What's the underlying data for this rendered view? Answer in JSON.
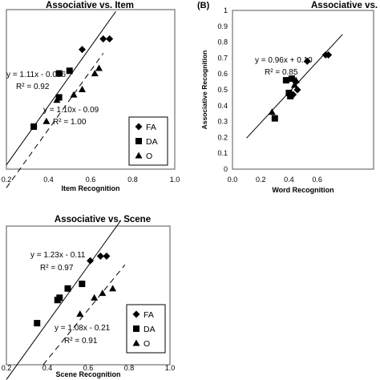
{
  "chart_data": [
    {
      "type": "scatter",
      "panel": "",
      "title": "Associative vs. Item",
      "xlabel": "Item Recognition",
      "ylabel": "",
      "xlim": [
        0.2,
        1.0
      ],
      "ylim": [
        0.2,
        0.8
      ],
      "xticks": [
        "0.2",
        "0.4",
        "0.6",
        "0.8",
        "1.0"
      ],
      "legend": {
        "placement": "bottom-right",
        "entries": [
          "FA",
          "DA",
          "O"
        ]
      },
      "series": [
        {
          "name": "FA",
          "marker": "diamond",
          "points": [
            [
              0.56,
              0.65
            ],
            [
              0.66,
              0.69
            ],
            [
              0.69,
              0.69
            ]
          ]
        },
        {
          "name": "DA",
          "marker": "square",
          "points": [
            [
              0.33,
              0.36
            ],
            [
              0.45,
              0.56
            ],
            [
              0.5,
              0.57
            ],
            [
              0.45,
              0.47
            ]
          ]
        },
        {
          "name": "O",
          "marker": "triangle",
          "points": [
            [
              0.39,
              0.38
            ],
            [
              0.44,
              0.46
            ],
            [
              0.52,
              0.48
            ],
            [
              0.56,
              0.5
            ],
            [
              0.62,
              0.56
            ],
            [
              0.64,
              0.58
            ]
          ]
        }
      ],
      "fits": [
        {
          "label": "y = 1.11x - 0.006",
          "r2": "R² = 0.92",
          "slope": 1.11,
          "intercept": -0.006,
          "x_range": [
            0.2,
            0.72
          ],
          "style": "solid"
        },
        {
          "label": "y = 1.10x - 0.09",
          "r2": "R² = 1.00",
          "slope": 1.1,
          "intercept": -0.09,
          "x_range": [
            0.2,
            0.66
          ],
          "style": "dashed"
        }
      ]
    },
    {
      "type": "scatter",
      "panel": "(B)",
      "title": "Associative vs. Wo",
      "xlabel": "Word Recognition",
      "ylabel": "Associative Recognition",
      "xlim": [
        0.0,
        1.0
      ],
      "ylim": [
        0.0,
        1.0
      ],
      "xticks": [
        "0.0",
        "0.2",
        "0.4",
        "0.6"
      ],
      "yticks": [
        "0",
        "0.1",
        "0.2",
        "0.3",
        "0.4",
        "0.5",
        "0.6",
        "0.7",
        "0.8",
        "0.9",
        "1"
      ],
      "series": [
        {
          "name": "FA",
          "marker": "diamond",
          "points": [
            [
              0.53,
              0.68
            ],
            [
              0.66,
              0.72
            ],
            [
              0.68,
              0.72
            ],
            [
              0.45,
              0.55
            ],
            [
              0.43,
              0.47
            ],
            [
              0.46,
              0.5
            ]
          ]
        },
        {
          "name": "DA",
          "marker": "square",
          "points": [
            [
              0.38,
              0.56
            ],
            [
              0.42,
              0.57
            ],
            [
              0.4,
              0.48
            ],
            [
              0.41,
              0.46
            ],
            [
              0.3,
              0.32
            ]
          ]
        },
        {
          "name": "O",
          "marker": "triangle",
          "points": [
            [
              0.28,
              0.36
            ],
            [
              0.44,
              0.53
            ],
            [
              0.45,
              0.56
            ]
          ]
        }
      ],
      "fits": [
        {
          "label": "y = 0.96x + 0.10",
          "r2": "R² = 0.85",
          "slope": 0.96,
          "intercept": 0.1,
          "x_range": [
            0.1,
            0.78
          ],
          "style": "solid"
        }
      ]
    },
    {
      "type": "scatter",
      "panel": "",
      "title": "Associative vs. Scene",
      "xlabel": "Scene Recognition",
      "ylabel": "",
      "xlim": [
        0.2,
        1.0
      ],
      "ylim": [
        0.2,
        0.8
      ],
      "xticks": [
        "0.2",
        "0.4",
        "0.6",
        "0.8",
        "1.0"
      ],
      "legend": {
        "placement": "bottom-right",
        "entries": [
          "FA",
          "DA",
          "O"
        ]
      },
      "series": [
        {
          "name": "FA",
          "marker": "diamond",
          "points": [
            [
              0.61,
              0.65
            ],
            [
              0.66,
              0.67
            ],
            [
              0.69,
              0.67
            ]
          ]
        },
        {
          "name": "DA",
          "marker": "square",
          "points": [
            [
              0.35,
              0.38
            ],
            [
              0.45,
              0.48
            ],
            [
              0.5,
              0.53
            ],
            [
              0.57,
              0.55
            ],
            [
              0.46,
              0.49
            ]
          ]
        },
        {
          "name": "O",
          "marker": "triangle",
          "points": [
            [
              0.56,
              0.42
            ],
            [
              0.63,
              0.49
            ],
            [
              0.67,
              0.51
            ],
            [
              0.72,
              0.53
            ]
          ]
        }
      ],
      "fits": [
        {
          "label": "y = 1.23x - 0.11",
          "r2": "R² = 0.97",
          "slope": 1.23,
          "intercept": -0.11,
          "x_range": [
            0.2,
            0.76
          ],
          "style": "solid"
        },
        {
          "label": "y = 1.08x - 0.21",
          "r2": "R² = 0.91",
          "slope": 1.08,
          "intercept": -0.21,
          "x_range": [
            0.38,
            0.78
          ],
          "style": "dashed"
        }
      ]
    }
  ]
}
